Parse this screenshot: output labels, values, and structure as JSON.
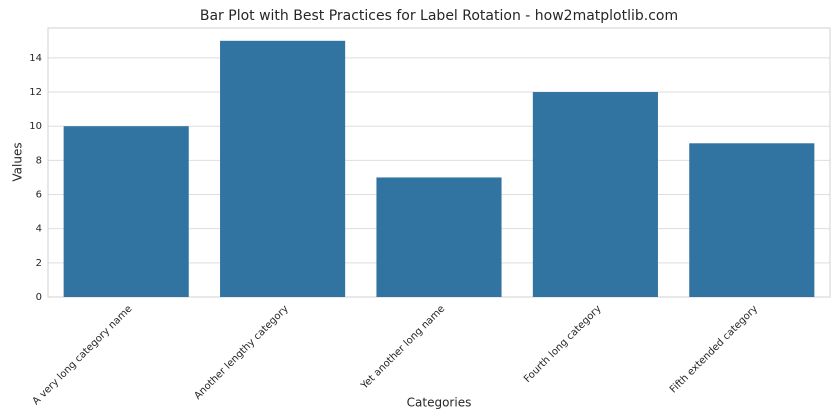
{
  "chart_data": {
    "type": "bar",
    "title": "Bar Plot with Best Practices for Label Rotation - how2matplotlib.com",
    "x_label": "Categories",
    "y_label": "Values",
    "categories": [
      "A very long category name",
      "Another lengthy category",
      "Yet another long name",
      "Fourth long category",
      "Fifth extended category"
    ],
    "values": [
      10,
      15,
      7,
      12,
      9
    ],
    "color": "#3274a1",
    "ylim": [
      0,
      15.75
    ],
    "yticks": [
      0,
      2,
      4,
      6,
      8,
      10,
      12,
      14
    ],
    "grid": true
  }
}
